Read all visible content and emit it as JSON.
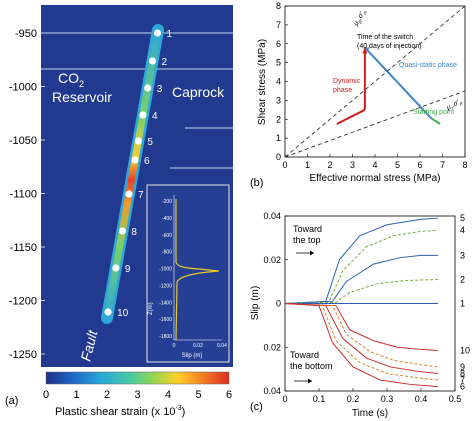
{
  "panel_a": {
    "label": "(a)",
    "reservoir_label_line1": "CO",
    "reservoir_label_sub": "2",
    "reservoir_label_line2": "Reservoir",
    "caprock_label": "Caprock",
    "fault_label": "Fault",
    "depth_ticks": [
      "-950",
      "-1000",
      "-1050",
      "-1100",
      "-1150",
      "-1200",
      "-1250"
    ],
    "depth_values": [
      -950,
      -1000,
      -1050,
      -1100,
      -1150,
      -1200,
      -1250
    ],
    "point_labels": [
      "1",
      "2",
      "3",
      "4",
      "5",
      "6",
      "7",
      "8",
      "9",
      "10"
    ],
    "colorbar_ticks": [
      "0",
      "1",
      "2",
      "3",
      "4",
      "5",
      "6"
    ],
    "colorbar_label": "Plastic shear strain (x 10",
    "colorbar_label_exp": "-3",
    "colorbar_label_end": ")",
    "colors": {
      "background": "#213a8f",
      "fault_band": "#2ea8d8",
      "fault_core": "#5cc06a",
      "point": "#ffffff",
      "colormap": [
        "#1f2c88",
        "#1e63c4",
        "#27a8d6",
        "#45c7a7",
        "#8ed653",
        "#ffd02a",
        "#f47c22",
        "#d92d20"
      ]
    },
    "inset": {
      "ylabel": "Z(m)",
      "xlabel": "Slip (m)",
      "yticks": [
        "-200",
        "-400",
        "-600",
        "-800",
        "-1000",
        "-1200",
        "-1400",
        "-1600",
        "-1800"
      ],
      "xticks": [
        "0",
        "0.02",
        "0.04"
      ],
      "line_color": "#e8c632"
    }
  },
  "chart_data": [
    {
      "type": "line",
      "title": "",
      "xlabel": "Effective normal stress (MPa)",
      "ylabel": "Shear stress (MPa)",
      "xlim": [
        0,
        8
      ],
      "ylim": [
        0,
        8
      ],
      "xticks": [
        "0",
        "1",
        "2",
        "3",
        "4",
        "5",
        "6",
        "7",
        "8"
      ],
      "yticks": [
        "0",
        "1",
        "2",
        "3",
        "4",
        "5",
        "6",
        "7",
        "8"
      ],
      "grid": false,
      "series": [
        {
          "name": "Quasi-static phase",
          "color": "#3a86c8",
          "x": [
            6.5,
            3.55
          ],
          "y": [
            2.05,
            5.8
          ]
        },
        {
          "name": "Dynamic phase",
          "color": "#cc2020",
          "x": [
            3.55,
            3.55
          ],
          "y": [
            2.5,
            5.8
          ]
        },
        {
          "name": "",
          "color": "#333333",
          "dashed": true,
          "x": [
            0,
            8
          ],
          "y": [
            0,
            8
          ]
        },
        {
          "name": "",
          "color": "#333333",
          "dashed": true,
          "x": [
            0,
            8
          ],
          "y": [
            0,
            3.5
          ]
        },
        {
          "name": "",
          "color": "#cc2020",
          "x": [
            2.3,
            3.55
          ],
          "y": [
            1.75,
            2.5
          ]
        },
        {
          "name": "",
          "color": "#3fb04a",
          "x": [
            6.5,
            6.9
          ],
          "y": [
            2.05,
            1.75
          ]
        }
      ],
      "annotations": {
        "switch_line1": "Time of the switch",
        "switch_line2": "(40 days of injection)",
        "quasi_static": "Quasi-static phase",
        "dynamic_line1": "Dynamic",
        "dynamic_line2": "phase",
        "starting_point": "Starting point",
        "mu_peak": "μ",
        "mu_peak_sub": "p",
        "mu_peak_rest": ".σ'",
        "mu_peak_sub2": "n",
        "mu_res": "μ",
        "mu_res_sub": "r",
        "mu_res_rest": ".σ'",
        "mu_res_sub2": "n"
      },
      "panel_label": "(b)"
    },
    {
      "type": "line",
      "title": "",
      "xlabel": "Time (s)",
      "ylabel": "Slip (m)",
      "xlim": [
        0,
        0.5
      ],
      "ylim": [
        -0.04,
        0.04
      ],
      "xticks": [
        "0",
        "0.1",
        "0.2",
        "0.3",
        "0.4",
        "0.5"
      ],
      "yticks_top": [
        "0.04",
        "0.02",
        "0"
      ],
      "yticks_bottom": [
        "0.02",
        "0.04"
      ],
      "panel_label": "(c)",
      "annotation_top_line1": "Toward",
      "annotation_top_line2": "the top",
      "annotation_bottom_line1": "Toward",
      "annotation_bottom_line2": "the bottom",
      "series": [
        {
          "name": "5",
          "color": "#2a5fb0",
          "dashed": false,
          "x": [
            0,
            0.12,
            0.16,
            0.22,
            0.3,
            0.4,
            0.45
          ],
          "y": [
            0,
            0.001,
            0.02,
            0.031,
            0.036,
            0.0385,
            0.039
          ]
        },
        {
          "name": "4",
          "color": "#7aa838",
          "dashed": true,
          "x": [
            0,
            0.13,
            0.17,
            0.24,
            0.32,
            0.4,
            0.45
          ],
          "y": [
            0,
            0.001,
            0.015,
            0.026,
            0.031,
            0.033,
            0.0335
          ]
        },
        {
          "name": "3",
          "color": "#2a5fb0",
          "dashed": false,
          "x": [
            0,
            0.14,
            0.18,
            0.26,
            0.34,
            0.4,
            0.45
          ],
          "y": [
            0,
            0.001,
            0.01,
            0.018,
            0.021,
            0.022,
            0.022
          ]
        },
        {
          "name": "2",
          "color": "#7aa838",
          "dashed": true,
          "x": [
            0,
            0.15,
            0.19,
            0.27,
            0.35,
            0.45
          ],
          "y": [
            0,
            0.0005,
            0.005,
            0.009,
            0.0105,
            0.011
          ]
        },
        {
          "name": "1",
          "color": "#2a5fb0",
          "dashed": false,
          "x": [
            0,
            0.45
          ],
          "y": [
            0,
            0
          ]
        },
        {
          "name": "10",
          "color": "#cc2a2a",
          "dashed": false,
          "x": [
            0,
            0.15,
            0.19,
            0.26,
            0.33,
            0.4,
            0.45
          ],
          "y": [
            0,
            -0.001,
            -0.012,
            -0.017,
            -0.02,
            -0.021,
            -0.0215
          ]
        },
        {
          "name": "9",
          "color": "#d08a2a",
          "dashed": true,
          "x": [
            0,
            0.14,
            0.18,
            0.25,
            0.32,
            0.4,
            0.45
          ],
          "y": [
            0,
            -0.001,
            -0.014,
            -0.022,
            -0.026,
            -0.028,
            -0.029
          ]
        },
        {
          "name": "8",
          "color": "#cc2a2a",
          "dashed": false,
          "x": [
            0,
            0.12,
            0.17,
            0.24,
            0.31,
            0.39,
            0.45
          ],
          "y": [
            0,
            -0.001,
            -0.016,
            -0.025,
            -0.029,
            -0.031,
            -0.032
          ]
        },
        {
          "name": "7",
          "color": "#d08a2a",
          "dashed": true,
          "x": [
            0,
            0.11,
            0.15,
            0.22,
            0.3,
            0.39,
            0.45
          ],
          "y": [
            0,
            -0.001,
            -0.017,
            -0.027,
            -0.032,
            -0.034,
            -0.035
          ]
        },
        {
          "name": "6",
          "color": "#cc2a2a",
          "dashed": false,
          "x": [
            0,
            0.1,
            0.14,
            0.2,
            0.28,
            0.37,
            0.45
          ],
          "y": [
            0,
            -0.001,
            -0.018,
            -0.029,
            -0.035,
            -0.037,
            -0.038
          ]
        }
      ]
    }
  ]
}
